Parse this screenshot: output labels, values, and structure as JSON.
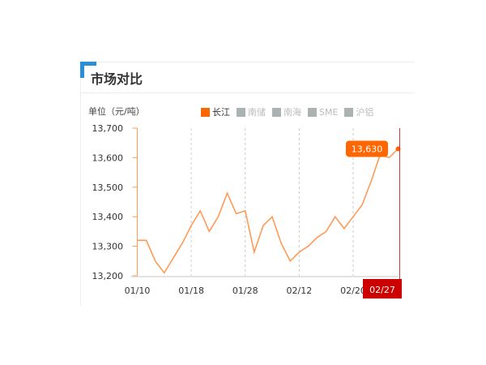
{
  "header": {
    "title": "市场对比"
  },
  "chart_data": {
    "type": "line",
    "ylabel": "单位（元/吨）",
    "ylim": [
      13200,
      13700
    ],
    "yticks": [
      "13,200",
      "13,300",
      "13,400",
      "13,500",
      "13,600",
      "13,700"
    ],
    "xticks": [
      {
        "index": 0,
        "label": "01/10"
      },
      {
        "index": 6,
        "label": "01/18"
      },
      {
        "index": 12,
        "label": "01/28"
      },
      {
        "index": 18,
        "label": "02/12"
      },
      {
        "index": 24,
        "label": "02/20"
      }
    ],
    "legend": [
      {
        "name": "长江",
        "active": true
      },
      {
        "name": "南储",
        "active": false
      },
      {
        "name": "南海",
        "active": false
      },
      {
        "name": "SME",
        "active": false
      },
      {
        "name": "沪铝",
        "active": false
      }
    ],
    "series": [
      {
        "name": "长江",
        "color": "#ff9a56",
        "values": [
          13320,
          13320,
          13250,
          13210,
          13260,
          13310,
          13370,
          13420,
          13350,
          13400,
          13480,
          13410,
          13420,
          13280,
          13370,
          13400,
          13310,
          13250,
          13280,
          13300,
          13330,
          13350,
          13400,
          13360,
          13400,
          13440,
          13520,
          13610,
          13600,
          13630
        ]
      }
    ],
    "tooltip": {
      "value": "13,630",
      "date": "02/27"
    },
    "grid": "vertical dashed"
  }
}
